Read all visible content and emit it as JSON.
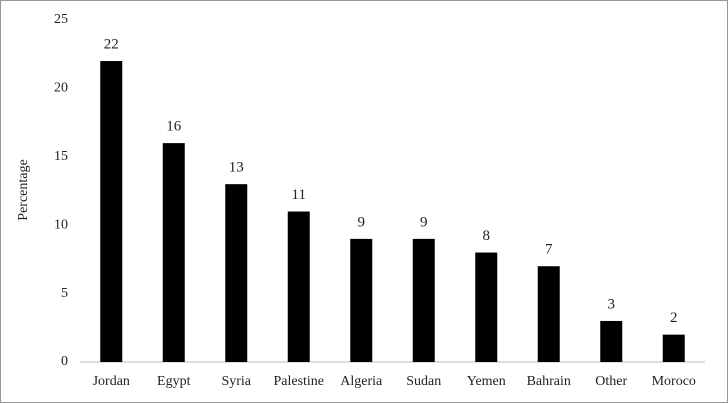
{
  "chart_data": {
    "type": "bar",
    "y_label": "Percentage",
    "categories": [
      "Jordan",
      "Egypt",
      "Syria",
      "Palestine",
      "Algeria",
      "Sudan",
      "Yemen",
      "Bahrain",
      "Other",
      "Moroco"
    ],
    "values": [
      22,
      16,
      13,
      11,
      9,
      9,
      8,
      7,
      3,
      2
    ],
    "color": "#000000",
    "ylim": [
      0,
      25
    ],
    "yticks": [
      0,
      5,
      10,
      15,
      20,
      25
    ],
    "grid": false
  }
}
